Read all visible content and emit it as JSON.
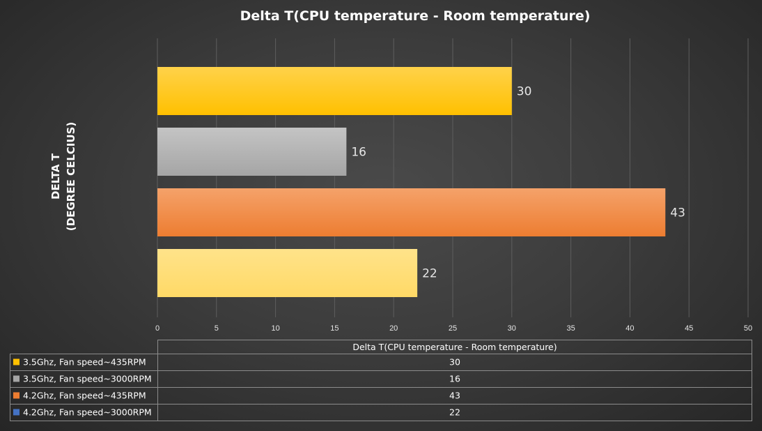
{
  "chart_data": {
    "type": "bar",
    "orientation": "horizontal",
    "title": "Delta T(CPU temperature  - Room temperature)",
    "ylabel_lines": [
      "DELTA T",
      "(DEGREE CELCIUS)"
    ],
    "xlabel": "",
    "xlim": [
      0,
      50
    ],
    "xticks": [
      0,
      5,
      10,
      15,
      20,
      25,
      30,
      35,
      40,
      45,
      50
    ],
    "grid": true,
    "series": [
      {
        "name": "3.5Ghz, Fan speed~435RPM",
        "value": 30,
        "color": "#ffc000",
        "color_light": "#ffd24a"
      },
      {
        "name": "3.5Ghz, Fan speed~3000RPM",
        "value": 16,
        "color": "#a5a5a5",
        "color_light": "#c4c4c4"
      },
      {
        "name": "4.2Ghz, Fan speed~435RPM",
        "value": 43,
        "color": "#ed7d31",
        "color_light": "#f5a26a"
      },
      {
        "name": "4.2Ghz, Fan speed~3000RPM",
        "value": 22,
        "color": "#ffd966",
        "color_light": "#ffe38a",
        "legend_color": "#4472c4"
      }
    ],
    "data_table": {
      "header": "Delta T(CPU temperature - Room temperature)"
    }
  }
}
